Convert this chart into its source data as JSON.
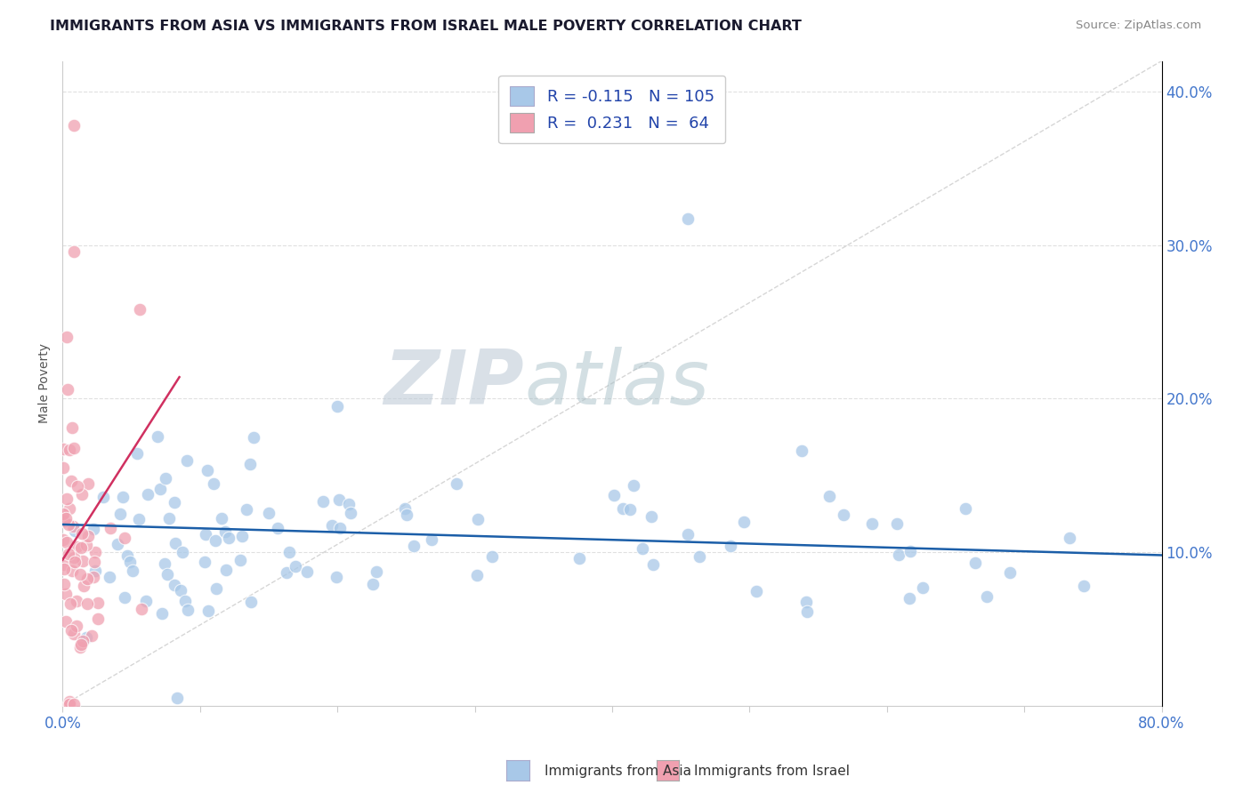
{
  "title": "IMMIGRANTS FROM ASIA VS IMMIGRANTS FROM ISRAEL MALE POVERTY CORRELATION CHART",
  "source": "Source: ZipAtlas.com",
  "ylabel": "Male Poverty",
  "legend_labels": [
    "Immigrants from Asia",
    "Immigrants from Israel"
  ],
  "blue_R": -0.115,
  "blue_N": 105,
  "pink_R": 0.231,
  "pink_N": 64,
  "blue_color": "#A8C8E8",
  "pink_color": "#F0A0B0",
  "blue_line_color": "#1B5EA8",
  "pink_line_color": "#D03060",
  "watermark_zip": "ZIP",
  "watermark_atlas": "atlas",
  "watermark_color_zip": "#C8D8E8",
  "watermark_color_atlas": "#B8C8D0",
  "background_color": "#FFFFFF",
  "xlim": [
    0.0,
    0.8
  ],
  "ylim": [
    0.0,
    0.42
  ],
  "ytick_vals": [
    0.1,
    0.2,
    0.3,
    0.4
  ],
  "xtick_vals": [
    0.0,
    0.1,
    0.2,
    0.3,
    0.4,
    0.5,
    0.6,
    0.7,
    0.8
  ],
  "diag_color": "#CCCCCC",
  "grid_color": "#E0E0E0",
  "tick_label_color": "#4477CC",
  "title_color": "#1A1A2E",
  "source_color": "#888888",
  "legend_text_color": "#2244AA",
  "legend_edge_color": "#CCCCCC"
}
